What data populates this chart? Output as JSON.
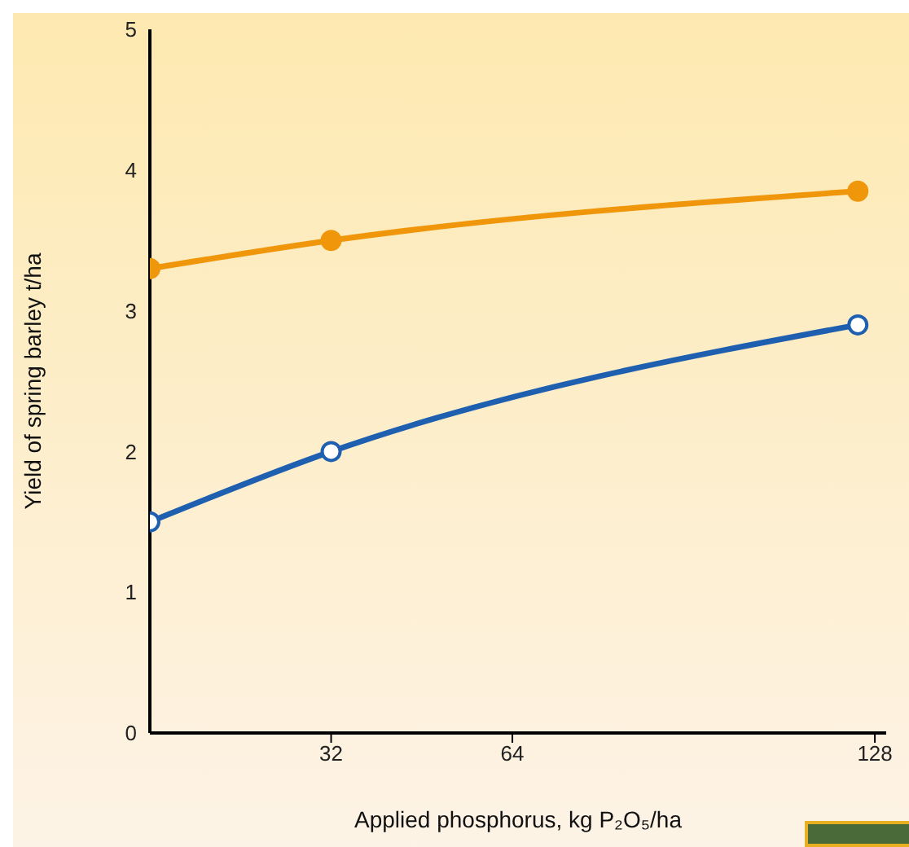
{
  "chart_data": {
    "type": "line",
    "xlabel": "Applied phosphorus, kg P₂O₅/ha",
    "ylabel": "Yield of spring barley t/ha",
    "x": [
      0,
      32,
      125
    ],
    "series": [
      {
        "color": "#f0960a",
        "values": [
          3.3,
          3.5,
          3.85
        ]
      },
      {
        "color": "#1f5fb0",
        "values": [
          1.5,
          2.0,
          2.9
        ]
      }
    ],
    "xlim": [
      0,
      130
    ],
    "xticks": [
      32,
      64,
      128
    ],
    "ylim": [
      0,
      5
    ],
    "yticks": [
      0,
      1,
      2,
      3,
      4,
      5
    ],
    "grid": false,
    "legend": false,
    "marker": "circle",
    "line_style": "solid"
  }
}
